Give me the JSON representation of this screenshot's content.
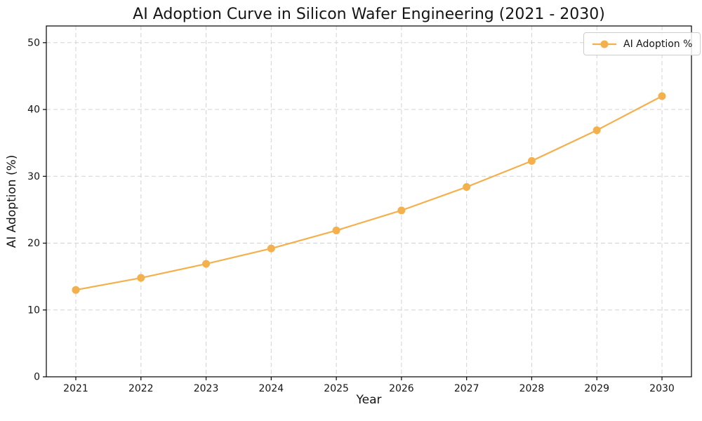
{
  "figure": {
    "background": "#ffffff",
    "text_color": "#151515",
    "spine_color": "#000000"
  },
  "chart_data": {
    "type": "line",
    "title": "AI Adoption Curve in Silicon Wafer Engineering (2021 - 2030)",
    "xlabel": "Year",
    "ylabel": "AI Adoption (%)",
    "categories": [
      "2021",
      "2022",
      "2023",
      "2024",
      "2025",
      "2026",
      "2027",
      "2028",
      "2029",
      "2030"
    ],
    "series": [
      {
        "name": "AI Adoption %",
        "values": [
          13.0,
          14.8,
          16.9,
          19.2,
          21.9,
          24.9,
          28.4,
          32.3,
          36.9,
          42.0
        ],
        "color": "#F4B04D",
        "marker": "circle"
      }
    ],
    "ylim": [
      0,
      52.5
    ],
    "yticks": [
      0,
      10,
      20,
      30,
      40,
      50
    ],
    "grid": true,
    "grid_style": "dashed",
    "grid_color": "#d3d3d3",
    "legend": {
      "position": "upper right",
      "entries": [
        {
          "label": "AI Adoption %",
          "color": "#F4B04D"
        }
      ]
    }
  }
}
